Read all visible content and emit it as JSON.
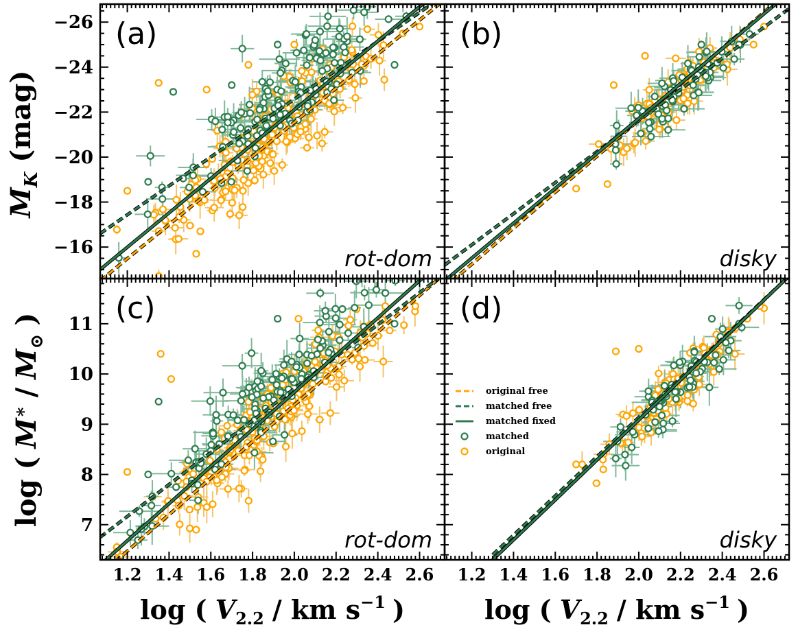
{
  "figure": {
    "ylabel_top": "M_K (mag)",
    "ylabel_top_main": "M",
    "ylabel_top_sub": "K",
    "ylabel_top_unit": "(mag)",
    "ylabel_bottom": "log ( M* / M⊙ )",
    "ylabel_bottom_pre": "log (",
    "ylabel_bottom_m1": "M",
    "ylabel_bottom_star": "∗",
    "ylabel_bottom_mid": "/",
    "ylabel_bottom_m2": "M",
    "ylabel_bottom_sun": "⊙",
    "ylabel_bottom_post": ")",
    "xlabel_pre": "log (",
    "xlabel_v": "V",
    "xlabel_sub": "2.2",
    "xlabel_post": "/ km s",
    "xlabel_sup": "−1",
    "xlabel_close": ")",
    "legend": [
      {
        "label": "original free",
        "style": "dashed",
        "color": "#ffa500",
        "marker": "line"
      },
      {
        "label": "matched free",
        "style": "dashed",
        "color": "#2e7d4f",
        "marker": "line"
      },
      {
        "label": "matched fixed",
        "style": "solid",
        "color": "#2e7d4f",
        "marker": "line"
      },
      {
        "label": "matched",
        "color": "#2e7d4f",
        "marker": "circle"
      },
      {
        "label": "original",
        "color": "#ffa500",
        "marker": "circle"
      }
    ],
    "colors": {
      "original": "#ffa500",
      "matched": "#2e7d4f",
      "matched_err": "#7fb89a",
      "original_err": "#f5c36b"
    }
  },
  "chart_data": [
    {
      "panel": "(a)",
      "type": "scatter",
      "annotation": "rot-dom",
      "xlim": [
        1.07,
        2.72
      ],
      "ylim": [
        -14.6,
        -26.8
      ],
      "xticks": [
        "1.2",
        "1.4",
        "1.6",
        "1.8",
        "2.0",
        "2.2",
        "2.4",
        "2.6"
      ],
      "yticks": [
        "−26",
        "−24",
        "−22",
        "−20",
        "−18",
        "−16"
      ],
      "lines": [
        {
          "name": "original free",
          "style": "dashed",
          "color": "#ffa500",
          "x": [
            1.07,
            2.72
          ],
          "y": [
            -14.5,
            -27.0
          ]
        },
        {
          "name": "matched free",
          "style": "dashed",
          "color": "#2e7d4f",
          "x": [
            1.07,
            2.72
          ],
          "y": [
            -16.6,
            -27.2
          ]
        },
        {
          "name": "matched fixed",
          "style": "solid",
          "color": "#2e7d4f",
          "x": [
            1.07,
            2.72
          ],
          "y": [
            -15.0,
            -27.6
          ]
        }
      ],
      "highlight_points": {
        "original": [
          [
            1.2,
            -18.5
          ],
          [
            1.35,
            -23.3
          ],
          [
            1.55,
            -16.7
          ],
          [
            1.53,
            -15.7
          ],
          [
            1.58,
            -23.0
          ],
          [
            2.6,
            -25.8
          ],
          [
            2.0,
            -25.0
          ],
          [
            1.78,
            -24.1
          ],
          [
            2.52,
            -25.5
          ]
        ],
        "matched": [
          [
            1.42,
            -22.9
          ],
          [
            1.3,
            -18.9
          ],
          [
            1.92,
            -25.0
          ],
          [
            2.1,
            -25.2
          ],
          [
            2.48,
            -24.1
          ],
          [
            1.7,
            -23.2
          ]
        ]
      }
    },
    {
      "panel": "(b)",
      "type": "scatter",
      "annotation": "disky",
      "xlim": [
        1.07,
        2.72
      ],
      "ylim": [
        -14.6,
        -26.8
      ],
      "xticks": [
        "1.2",
        "1.4",
        "1.6",
        "1.8",
        "2.0",
        "2.2",
        "2.4",
        "2.6"
      ],
      "yticks": [
        "−26",
        "−24",
        "−22",
        "−20",
        "−18",
        "−16"
      ],
      "lines": [
        {
          "name": "original free",
          "style": "dashed",
          "color": "#ffa500",
          "x": [
            1.07,
            2.72
          ],
          "y": [
            -14.2,
            -27.4
          ]
        },
        {
          "name": "matched free",
          "style": "dashed",
          "color": "#2e7d4f",
          "x": [
            1.07,
            2.72
          ],
          "y": [
            -15.2,
            -26.6
          ]
        },
        {
          "name": "matched fixed",
          "style": "solid",
          "color": "#2e7d4f",
          "x": [
            1.07,
            2.72
          ],
          "y": [
            -14.5,
            -27.3
          ]
        }
      ],
      "highlight_points": {
        "original": [
          [
            1.7,
            -18.6
          ],
          [
            1.85,
            -18.8
          ],
          [
            2.03,
            -24.5
          ],
          [
            1.88,
            -23.2
          ],
          [
            2.6,
            -25.8
          ],
          [
            2.55,
            -25.0
          ]
        ],
        "matched": [
          [
            2.48,
            -25.0
          ],
          [
            2.3,
            -25.0
          ]
        ]
      }
    },
    {
      "panel": "(c)",
      "type": "scatter",
      "annotation": "rot-dom",
      "xlim": [
        1.07,
        2.72
      ],
      "ylim": [
        6.3,
        11.9
      ],
      "xticks": [
        "1.2",
        "1.4",
        "1.6",
        "1.8",
        "2.0",
        "2.2",
        "2.4",
        "2.6"
      ],
      "yticks": [
        "7",
        "8",
        "9",
        "10",
        "11"
      ],
      "lines": [
        {
          "name": "original free",
          "style": "dashed",
          "color": "#ffa500",
          "x": [
            1.07,
            2.72
          ],
          "y": [
            6.0,
            12.0
          ]
        },
        {
          "name": "matched free",
          "style": "dashed",
          "color": "#2e7d4f",
          "x": [
            1.07,
            2.72
          ],
          "y": [
            6.75,
            12.0
          ]
        },
        {
          "name": "matched fixed",
          "style": "solid",
          "color": "#2e7d4f",
          "x": [
            1.07,
            2.72
          ],
          "y": [
            6.2,
            12.3
          ]
        }
      ],
      "highlight_points": {
        "original": [
          [
            1.2,
            8.05
          ],
          [
            1.36,
            10.4
          ],
          [
            1.53,
            6.9
          ],
          [
            2.02,
            11.1
          ],
          [
            2.58,
            11.35
          ],
          [
            1.41,
            9.9
          ]
        ],
        "matched": [
          [
            1.92,
            11.1
          ],
          [
            1.35,
            9.45
          ],
          [
            1.3,
            8.0
          ],
          [
            2.48,
            11.0
          ]
        ]
      }
    },
    {
      "panel": "(d)",
      "type": "scatter",
      "annotation": "disky",
      "xlim": [
        1.07,
        2.72
      ],
      "ylim": [
        6.3,
        11.9
      ],
      "xticks": [
        "1.2",
        "1.4",
        "1.6",
        "1.8",
        "2.0",
        "2.2",
        "2.4",
        "2.6"
      ],
      "yticks": [
        "7",
        "8",
        "9",
        "10",
        "11"
      ],
      "lines": [
        {
          "name": "original free",
          "style": "dashed",
          "color": "#ffa500",
          "x": [
            1.3,
            2.72
          ],
          "y": [
            6.3,
            11.95
          ]
        },
        {
          "name": "matched free",
          "style": "dashed",
          "color": "#2e7d4f",
          "x": [
            1.3,
            2.72
          ],
          "y": [
            6.4,
            11.95
          ]
        },
        {
          "name": "matched fixed",
          "style": "solid",
          "color": "#2e7d4f",
          "x": [
            1.3,
            2.72
          ],
          "y": [
            6.3,
            11.95
          ]
        }
      ],
      "highlight_points": {
        "original": [
          [
            1.89,
            10.45
          ],
          [
            1.7,
            8.2
          ],
          [
            1.83,
            8.1
          ],
          [
            2.58,
            11.35
          ],
          [
            2.52,
            11.1
          ],
          [
            2.0,
            10.5
          ]
        ],
        "matched": [
          [
            2.48,
            11.0
          ],
          [
            2.35,
            11.1
          ]
        ]
      }
    }
  ]
}
